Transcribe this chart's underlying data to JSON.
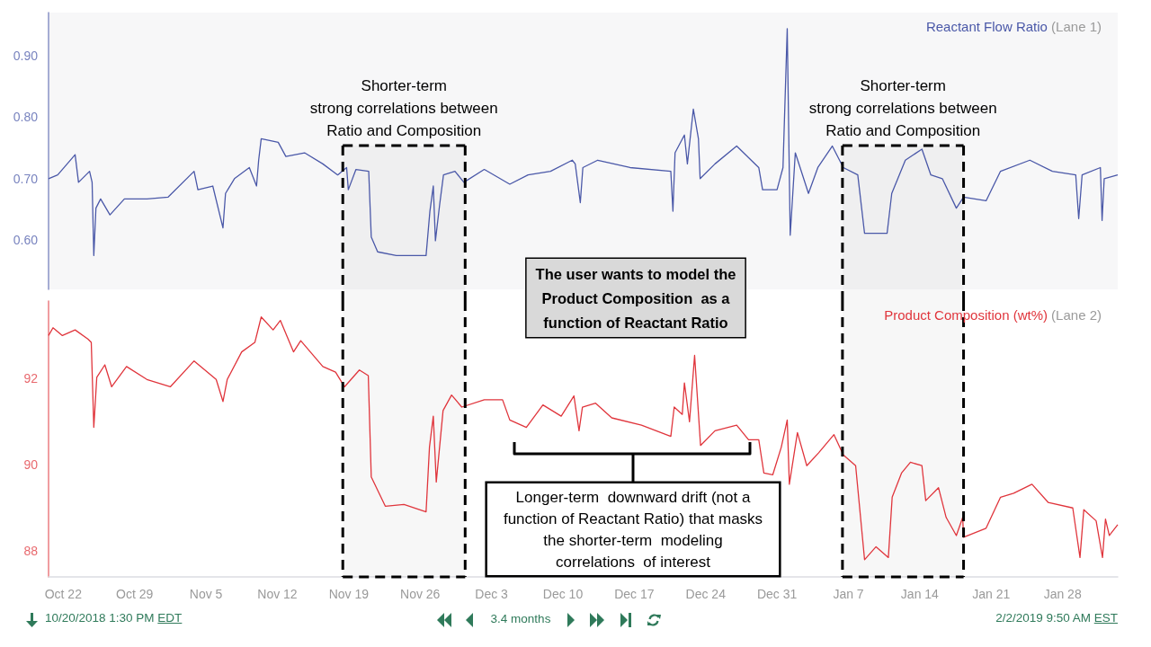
{
  "chart_data": [
    {
      "type": "line",
      "tick_labels": "y",
      "xlim": [
        "2018-10-20T13:30",
        "2019-02-02T09:50"
      ],
      "ylim": [
        0.52,
        0.97
      ],
      "yticks": [
        {
          "value": 0.6,
          "label": "0.60"
        },
        {
          "value": 0.7,
          "label": "0.70"
        },
        {
          "value": 0.8,
          "label": "0.80"
        },
        {
          "value": 0.9,
          "label": "0.90"
        }
      ],
      "series": [
        {
          "name": "Reactant Flow Ratio (Lane 1)",
          "color": "#4a58a8",
          "x": [
            "2018-10-20T13:30",
            "2018-10-21T11:00",
            "2018-10-23T04:00",
            "2018-10-23T12:00",
            "2018-10-24T14:00",
            "2018-10-24T20:00",
            "2018-10-25T00:00",
            "2018-10-25T05:00",
            "2018-10-25T16:00",
            "2018-10-26T14:00",
            "2018-10-28T00:00",
            "2018-10-30T05:00",
            "2018-11-01T07:00",
            "2018-11-03T20:00",
            "2018-11-04T05:00",
            "2018-11-05T16:00",
            "2018-11-06T16:00",
            "2018-11-06T22:00",
            "2018-11-07T19:00",
            "2018-11-09T06:00",
            "2018-11-09T23:00",
            "2018-11-10T04:00",
            "2018-11-10T10:00",
            "2018-11-12T02:00",
            "2018-11-12T20:00",
            "2018-11-14T16:00",
            "2018-11-16T11:00",
            "2018-11-17T22:00",
            "2018-11-18T19:00",
            "2018-11-18T23:00",
            "2018-11-19T17:00",
            "2018-11-20T23:00",
            "2018-11-21T05:00",
            "2018-11-21T20:00",
            "2018-11-23T16:00",
            "2018-11-25T11:00",
            "2018-11-26T14:00",
            "2018-11-26T23:00",
            "2018-11-27T07:00",
            "2018-11-27T12:00",
            "2018-11-27T22:00",
            "2018-11-28T07:00",
            "2018-11-29T10:00",
            "2018-11-30T07:00",
            "2018-12-02T07:00",
            "2018-12-04T19:00",
            "2018-12-06T14:00",
            "2018-12-08T19:00",
            "2018-12-10T22:00",
            "2018-12-11T05:00",
            "2018-12-11T17:00",
            "2018-12-11T23:00",
            "2018-12-13T10:00",
            "2018-12-16T14:00",
            "2018-12-20T14:00",
            "2018-12-20T19:00",
            "2018-12-21T00:00",
            "2018-12-21T22:00",
            "2018-12-22T05:00",
            "2018-12-22T19:00",
            "2018-12-23T07:00",
            "2018-12-23T11:00",
            "2018-12-24T22:00",
            "2018-12-27T01:00",
            "2018-12-29T05:00",
            "2018-12-29T14:00",
            "2018-12-31T00:00",
            "2018-12-31T14:00",
            "2019-01-01T00:00",
            "2019-01-01T07:00",
            "2019-01-01T19:00",
            "2019-01-03T02:00",
            "2019-01-04T00:00",
            "2019-01-05T10:00",
            "2019-01-06T12:00",
            "2019-01-07T22:00",
            "2019-01-08T14:00",
            "2019-01-10T19:00",
            "2019-01-11T06:00",
            "2019-01-12T14:00",
            "2019-01-14T05:00",
            "2019-01-15T02:00",
            "2019-01-16T05:00",
            "2019-01-17T14:00",
            "2019-01-18T07:00",
            "2019-01-20T12:00",
            "2019-01-21T22:00",
            "2019-01-24T19:00",
            "2019-01-27T00:00",
            "2019-01-29T07:00",
            "2019-01-29T14:00",
            "2019-01-29T22:00",
            "2019-01-31T17:00",
            "2019-01-31T21:00",
            "2019-02-01T02:00",
            "2019-02-02T09:50"
          ],
          "values": [
            0.7,
            0.706,
            0.739,
            0.694,
            0.712,
            0.694,
            0.575,
            0.652,
            0.667,
            0.641,
            0.667,
            0.667,
            0.67,
            0.712,
            0.682,
            0.688,
            0.62,
            0.676,
            0.7,
            0.718,
            0.688,
            0.73,
            0.765,
            0.759,
            0.736,
            0.742,
            0.724,
            0.706,
            0.718,
            0.682,
            0.715,
            0.712,
            0.605,
            0.581,
            0.575,
            0.575,
            0.575,
            0.647,
            0.688,
            0.599,
            0.658,
            0.706,
            0.712,
            0.694,
            0.715,
            0.691,
            0.706,
            0.712,
            0.73,
            0.724,
            0.661,
            0.718,
            0.73,
            0.718,
            0.712,
            0.647,
            0.742,
            0.771,
            0.724,
            0.813,
            0.765,
            0.7,
            0.724,
            0.753,
            0.718,
            0.682,
            0.682,
            0.718,
            0.944,
            0.608,
            0.742,
            0.676,
            0.718,
            0.753,
            0.718,
            0.706,
            0.611,
            0.611,
            0.676,
            0.73,
            0.748,
            0.706,
            0.7,
            0.652,
            0.67,
            0.664,
            0.712,
            0.73,
            0.712,
            0.706,
            0.635,
            0.706,
            0.718,
            0.632,
            0.7,
            0.706
          ]
        }
      ],
      "bands": [
        {
          "axis": "x",
          "from": "2018-11-18T10:00",
          "to": "2018-11-30T10:00",
          "label": "Shorter-term\nstrong correlations between\nRatio and Composition",
          "color": "#000000"
        },
        {
          "axis": "x",
          "from": "2019-01-06T10:00",
          "to": "2019-01-18T07:00",
          "label": "Shorter-term\nstrong correlations between\nRatio and Composition",
          "color": "#000000"
        }
      ],
      "annotations": [
        "The user wants to model the\nProduct Composition  as a\nfunction of Reactant Ratio"
      ]
    },
    {
      "type": "line",
      "xlim": [
        "2018-10-20T13:30",
        "2019-02-02T09:50"
      ],
      "ylim": [
        87.4,
        93.8
      ],
      "yticks": [
        88,
        90,
        92
      ],
      "xticks": [
        {
          "value": "2018-10-22",
          "label": "Oct 22"
        },
        {
          "value": "2018-10-29",
          "label": "Oct 29"
        },
        {
          "value": "2018-11-05",
          "label": "Nov 5"
        },
        {
          "value": "2018-11-12",
          "label": "Nov 12"
        },
        {
          "value": "2018-11-19",
          "label": "Nov 19"
        },
        {
          "value": "2018-11-26",
          "label": "Nov 26"
        },
        {
          "value": "2018-12-03",
          "label": "Dec 3"
        },
        {
          "value": "2018-12-10",
          "label": "Dec 10"
        },
        {
          "value": "2018-12-17",
          "label": "Dec 17"
        },
        {
          "value": "2018-12-24",
          "label": "Dec 24"
        },
        {
          "value": "2018-12-31",
          "label": "Dec 31"
        },
        {
          "value": "2019-01-07",
          "label": "Jan 7"
        },
        {
          "value": "2019-01-14",
          "label": "Jan 14"
        },
        {
          "value": "2019-01-21",
          "label": "Jan 21"
        },
        {
          "value": "2019-01-28",
          "label": "Jan 28"
        }
      ],
      "series": [
        {
          "name": "Product Composition (wt%) (Lane 2)",
          "color": "#e0353c",
          "x": [
            "2018-10-20T13:30",
            "2018-10-21T00:00",
            "2018-10-21T22:00",
            "2018-10-23T04:00",
            "2018-10-24T10:00",
            "2018-10-24T18:00",
            "2018-10-25T00:00",
            "2018-10-25T07:00",
            "2018-10-26T02:00",
            "2018-10-26T18:00",
            "2018-10-28T05:00",
            "2018-10-30T05:00",
            "2018-11-01T12:00",
            "2018-11-03T20:00",
            "2018-11-06T00:00",
            "2018-11-06T16:00",
            "2018-11-07T02:00",
            "2018-11-08T12:00",
            "2018-11-09T19:00",
            "2018-11-10T10:00",
            "2018-11-11T14:00",
            "2018-11-12T07:00",
            "2018-11-13T14:00",
            "2018-11-14T07:00",
            "2018-11-16T11:00",
            "2018-11-17T17:00",
            "2018-11-18T14:00",
            "2018-11-20T01:00",
            "2018-11-20T22:00",
            "2018-11-21T05:00",
            "2018-11-22T14:00",
            "2018-11-24T10:00",
            "2018-11-26T14:00",
            "2018-11-26T22:00",
            "2018-11-27T07:00",
            "2018-11-27T14:00",
            "2018-11-28T06:00",
            "2018-11-29T02:00",
            "2018-11-30T02:00",
            "2018-12-02T07:00",
            "2018-12-04T02:00",
            "2018-12-04T19:00",
            "2018-12-06T10:00",
            "2018-12-08T01:00",
            "2018-12-09T20:00",
            "2018-12-11T02:00",
            "2018-12-11T14:00",
            "2018-12-11T22:00",
            "2018-12-13T05:00",
            "2018-12-14T19:00",
            "2018-12-17T17:00",
            "2018-12-20T14:00",
            "2018-12-20T22:00",
            "2018-12-21T17:00",
            "2018-12-21T22:00",
            "2018-12-22T10:00",
            "2018-12-22T22:00",
            "2018-12-23T12:00",
            "2018-12-24T22:00",
            "2018-12-27T01:00",
            "2018-12-28T05:00",
            "2018-12-29T05:00",
            "2018-12-29T17:00",
            "2018-12-30T14:00",
            "2018-12-31T10:00",
            "2019-01-01T00:00",
            "2019-01-01T05:00",
            "2019-01-02T00:00",
            "2019-01-02T22:00",
            "2019-01-04T02:00",
            "2019-01-05T14:00",
            "2019-01-06T12:00",
            "2019-01-07T17:00",
            "2019-01-08T14:00",
            "2019-01-09T17:00",
            "2019-01-10T22:00",
            "2019-01-11T07:00",
            "2019-01-12T05:00",
            "2019-01-13T02:00",
            "2019-01-14T05:00",
            "2019-01-14T14:00",
            "2019-01-15T20:00",
            "2019-01-16T14:00",
            "2019-01-17T14:00",
            "2019-01-18T05:00",
            "2019-01-18T07:00",
            "2019-01-20T12:00",
            "2019-01-21T22:00",
            "2019-01-23T05:00",
            "2019-01-25T00:00",
            "2019-01-26T14:00",
            "2019-01-29T00:00",
            "2019-01-29T17:00",
            "2019-01-30T02:00",
            "2019-01-31T07:00",
            "2019-01-31T22:00",
            "2019-02-01T05:00",
            "2019-02-01T14:00",
            "2019-02-02T09:50"
          ],
          "values": [
            93.0,
            93.18,
            93.0,
            93.13,
            92.92,
            92.84,
            90.87,
            92.03,
            92.32,
            91.81,
            92.28,
            91.98,
            91.81,
            92.41,
            91.98,
            91.47,
            91.98,
            92.62,
            92.84,
            93.43,
            93.13,
            93.35,
            92.62,
            92.88,
            92.28,
            92.15,
            91.81,
            92.2,
            92.07,
            89.72,
            89.04,
            89.08,
            88.91,
            90.41,
            91.13,
            89.6,
            91.26,
            91.62,
            91.34,
            91.51,
            91.51,
            91.04,
            90.87,
            91.39,
            91.13,
            91.6,
            90.79,
            91.34,
            91.43,
            91.09,
            90.92,
            90.66,
            91.34,
            91.17,
            91.9,
            91.0,
            92.54,
            90.45,
            90.79,
            90.92,
            90.58,
            90.58,
            89.81,
            89.77,
            90.41,
            91.04,
            89.55,
            90.75,
            89.98,
            90.28,
            90.7,
            90.23,
            89.98,
            87.8,
            88.1,
            87.85,
            89.25,
            89.81,
            90.06,
            89.98,
            89.17,
            89.47,
            88.78,
            88.36,
            88.78,
            88.32,
            88.53,
            89.25,
            89.34,
            89.55,
            89.13,
            89.0,
            87.85,
            88.96,
            88.7,
            87.85,
            88.74,
            88.36,
            88.61
          ]
        }
      ],
      "bands": [
        {
          "axis": "x",
          "from": "2018-11-18T10:00",
          "to": "2018-11-30T10:00",
          "color": "#000000"
        },
        {
          "axis": "x",
          "from": "2019-01-06T10:00",
          "to": "2019-01-18T07:00",
          "color": "#000000"
        }
      ],
      "annotations": [
        "Longer-term  downward drift (not a\nfunction of Reactant Ratio) that masks\nthe shorter-term  modeling\ncorrelations  of interest",
        "10/20/2018 1:30 PM EDT",
        "3.4 months",
        "2/2/2019 9:50 AM EST"
      ]
    }
  ]
}
